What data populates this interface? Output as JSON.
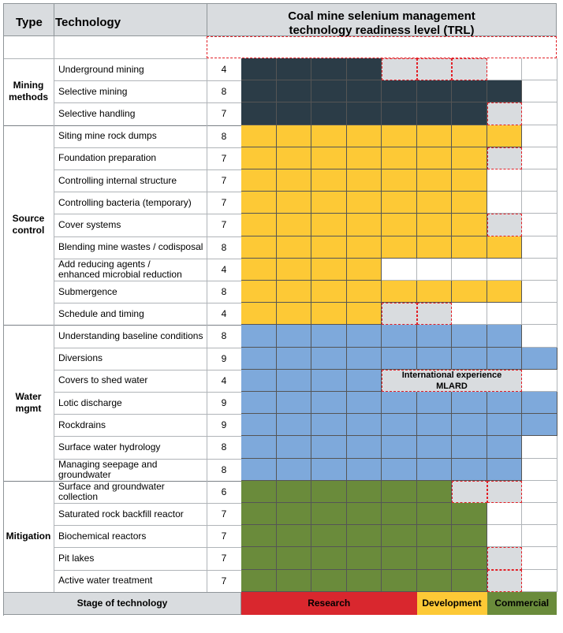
{
  "header": {
    "type_label": "Type",
    "technology_label": "Technology",
    "trl_title_line1": "Coal mine selenium management",
    "trl_title_line2": "technology readiness level (TRL)"
  },
  "colors": {
    "mining": "#2b3c47",
    "source": "#fdc936",
    "water": "#7ea9db",
    "mitigation": "#6a8b3b",
    "grey": "#d9dcdf",
    "research": "#d9272e",
    "development": "#fdc936",
    "commercial": "#6a8b3b"
  },
  "groups": [
    {
      "label_line1": "Mining",
      "label_line2": "methods",
      "color": "mining",
      "rows": [
        {
          "line1": "Underground mining",
          "line2": "",
          "trl": "4",
          "cells": [
            "c",
            "c",
            "c",
            "c",
            "g",
            "g",
            "g",
            "w",
            "w"
          ]
        },
        {
          "line1": "Selective mining",
          "line2": "",
          "trl": "8",
          "cells": [
            "c",
            "c",
            "c",
            "c",
            "c",
            "c",
            "c",
            "c",
            "w"
          ]
        },
        {
          "line1": "Selective handling",
          "line2": "",
          "trl": "7",
          "cells": [
            "c",
            "c",
            "c",
            "c",
            "c",
            "c",
            "c",
            "g",
            "w"
          ]
        }
      ]
    },
    {
      "label_line1": "Source",
      "label_line2": "control",
      "color": "source",
      "rows": [
        {
          "line1": "Siting mine rock dumps",
          "line2": "",
          "trl": "8",
          "cells": [
            "c",
            "c",
            "c",
            "c",
            "c",
            "c",
            "c",
            "c",
            "w"
          ]
        },
        {
          "line1": "Foundation preparation",
          "line2": "",
          "trl": "7",
          "cells": [
            "c",
            "c",
            "c",
            "c",
            "c",
            "c",
            "c",
            "g",
            "w"
          ]
        },
        {
          "line1": "Controlling internal structure",
          "line2": "",
          "trl": "7",
          "cells": [
            "c",
            "c",
            "c",
            "c",
            "c",
            "c",
            "c",
            "w",
            "w"
          ]
        },
        {
          "line1": "Controlling bacteria (temporary)",
          "line2": "",
          "trl": "7",
          "cells": [
            "c",
            "c",
            "c",
            "c",
            "c",
            "c",
            "c",
            "w",
            "w"
          ]
        },
        {
          "line1": "Cover systems",
          "line2": "",
          "trl": "7",
          "cells": [
            "c",
            "c",
            "c",
            "c",
            "c",
            "c",
            "c",
            "g",
            "w"
          ]
        },
        {
          "line1": "Blending mine wastes / codisposal",
          "line2": "",
          "trl": "8",
          "cells": [
            "c",
            "c",
            "c",
            "c",
            "c",
            "c",
            "c",
            "c",
            "w"
          ]
        },
        {
          "line1": "Add reducing agents /",
          "line2": "enhanced microbial reduction",
          "trl": "4",
          "cells": [
            "c",
            "c",
            "c",
            "c",
            "w",
            "w",
            "w",
            "w",
            "w"
          ]
        },
        {
          "line1": "Submergence",
          "line2": "",
          "trl": "8",
          "cells": [
            "c",
            "c",
            "c",
            "c",
            "c",
            "c",
            "c",
            "c",
            "w"
          ]
        },
        {
          "line1": "Schedule and timing",
          "line2": "",
          "trl": "4",
          "cells": [
            "c",
            "c",
            "c",
            "c",
            "g",
            "g",
            "w",
            "w",
            "w"
          ]
        }
      ]
    },
    {
      "label_line1": "Water",
      "label_line2": "mgmt",
      "color": "water",
      "rows": [
        {
          "line1": "Understanding baseline conditions",
          "line2": "",
          "trl": "8",
          "cells": [
            "c",
            "c",
            "c",
            "c",
            "c",
            "c",
            "c",
            "c",
            "w"
          ]
        },
        {
          "line1": "Diversions",
          "line2": "",
          "trl": "9",
          "cells": [
            "c",
            "c",
            "c",
            "c",
            "c",
            "c",
            "c",
            "c",
            "c"
          ]
        },
        {
          "line1": "Covers to shed water",
          "line2": "",
          "trl": "4",
          "cells": [
            "c",
            "c",
            "c",
            "c",
            "n",
            "n",
            "n",
            "n",
            "w"
          ]
        },
        {
          "line1": "Lotic discharge",
          "line2": "",
          "trl": "9",
          "cells": [
            "c",
            "c",
            "c",
            "c",
            "c",
            "c",
            "c",
            "c",
            "c"
          ]
        },
        {
          "line1": "Rockdrains",
          "line2": "",
          "trl": "9",
          "cells": [
            "c",
            "c",
            "c",
            "c",
            "c",
            "c",
            "c",
            "c",
            "c"
          ]
        },
        {
          "line1": "Surface water hydrology",
          "line2": "",
          "trl": "8",
          "cells": [
            "c",
            "c",
            "c",
            "c",
            "c",
            "c",
            "c",
            "c",
            "w"
          ]
        },
        {
          "line1": "Managing seepage and",
          "line2": "groundwater",
          "trl": "8",
          "cells": [
            "c",
            "c",
            "c",
            "c",
            "c",
            "c",
            "c",
            "c",
            "w"
          ]
        }
      ]
    },
    {
      "label_line1": "Mitigation",
      "label_line2": "",
      "color": "mitigation",
      "rows": [
        {
          "line1": "Surface and groundwater collection",
          "line2": "",
          "trl": "6",
          "cells": [
            "c",
            "c",
            "c",
            "c",
            "c",
            "c",
            "g",
            "g",
            "w"
          ]
        },
        {
          "line1": "Saturated rock backfill reactor",
          "line2": "",
          "trl": "7",
          "cells": [
            "c",
            "c",
            "c",
            "c",
            "c",
            "c",
            "c",
            "w",
            "w"
          ]
        },
        {
          "line1": "Biochemical reactors",
          "line2": "",
          "trl": "7",
          "cells": [
            "c",
            "c",
            "c",
            "c",
            "c",
            "c",
            "c",
            "w",
            "w"
          ]
        },
        {
          "line1": "Pit lakes",
          "line2": "",
          "trl": "7",
          "cells": [
            "c",
            "c",
            "c",
            "c",
            "c",
            "c",
            "c",
            "g",
            "w"
          ]
        },
        {
          "line1": "Active water treatment",
          "line2": "",
          "trl": "7",
          "cells": [
            "c",
            "c",
            "c",
            "c",
            "c",
            "c",
            "c",
            "g",
            "w"
          ]
        }
      ]
    }
  ],
  "note": {
    "line1": "International experience",
    "line2": "MLARD"
  },
  "footer": {
    "stage_label": "Stage of technology",
    "research_label": "Research",
    "development_label": "Development",
    "commercial_label": "Commercial"
  }
}
